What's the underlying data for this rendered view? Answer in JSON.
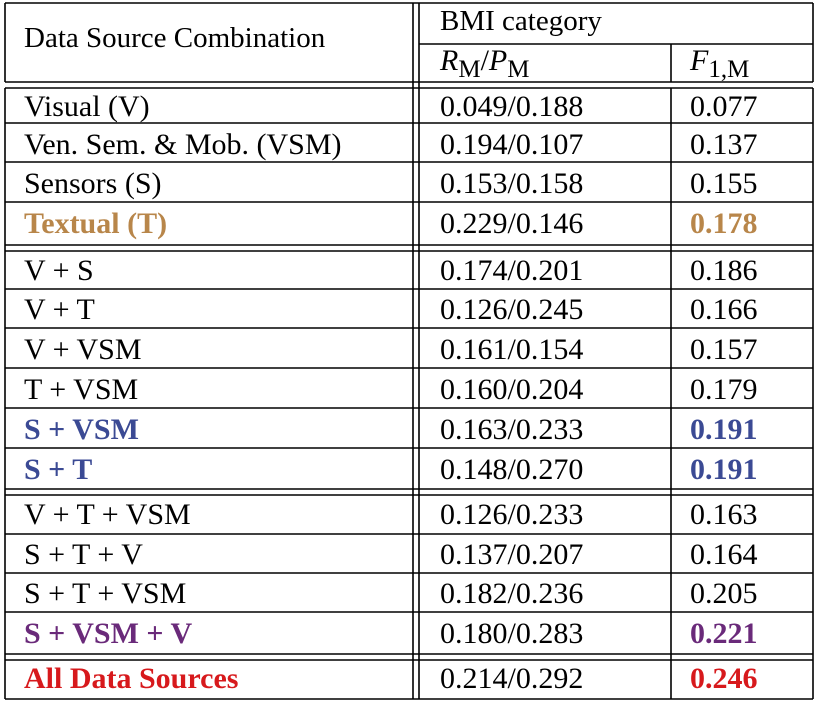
{
  "header": {
    "col1": "Data Source Combination",
    "group": "BMI category",
    "col2_main": "R",
    "col2_sub": "M",
    "col2_sep": "/",
    "col2_main2": "P",
    "col2_sub2": "M",
    "col3_main": "F",
    "col3_sub": "1,M"
  },
  "colors": {
    "orange": "#b8864a",
    "blue": "#3b4a94",
    "purple": "#6a2a7a",
    "red": "#d7191c"
  },
  "rows": [
    {
      "name": "Visual (V)",
      "rp": "0.049/0.188",
      "f1": "0.077"
    },
    {
      "name": "Ven. Sem. & Mob. (VSM)",
      "rp": "0.194/0.107",
      "f1": "0.137"
    },
    {
      "name": "Sensors (S)",
      "rp": "0.153/0.158",
      "f1": "0.155"
    },
    {
      "name": "Textual (T)",
      "rp": "0.229/0.146",
      "f1": "0.178"
    },
    {
      "name": "V + S",
      "rp": "0.174/0.201",
      "f1": "0.186"
    },
    {
      "name": "V + T",
      "rp": "0.126/0.245",
      "f1": "0.166"
    },
    {
      "name": "V + VSM",
      "rp": "0.161/0.154",
      "f1": "0.157"
    },
    {
      "name": "T + VSM",
      "rp": "0.160/0.204",
      "f1": "0.179"
    },
    {
      "name": "S + VSM",
      "rp": "0.163/0.233",
      "f1": "0.191"
    },
    {
      "name": "S + T",
      "rp": "0.148/0.270",
      "f1": "0.191"
    },
    {
      "name": "V + T + VSM",
      "rp": "0.126/0.233",
      "f1": "0.163"
    },
    {
      "name": "S + T + V",
      "rp": "0.137/0.207",
      "f1": "0.164"
    },
    {
      "name": "S + T + VSM",
      "rp": "0.182/0.236",
      "f1": "0.205"
    },
    {
      "name": "S + VSM + V",
      "rp": "0.180/0.283",
      "f1": "0.221"
    },
    {
      "name": "All Data Sources",
      "rp": "0.214/0.292",
      "f1": "0.246"
    }
  ]
}
